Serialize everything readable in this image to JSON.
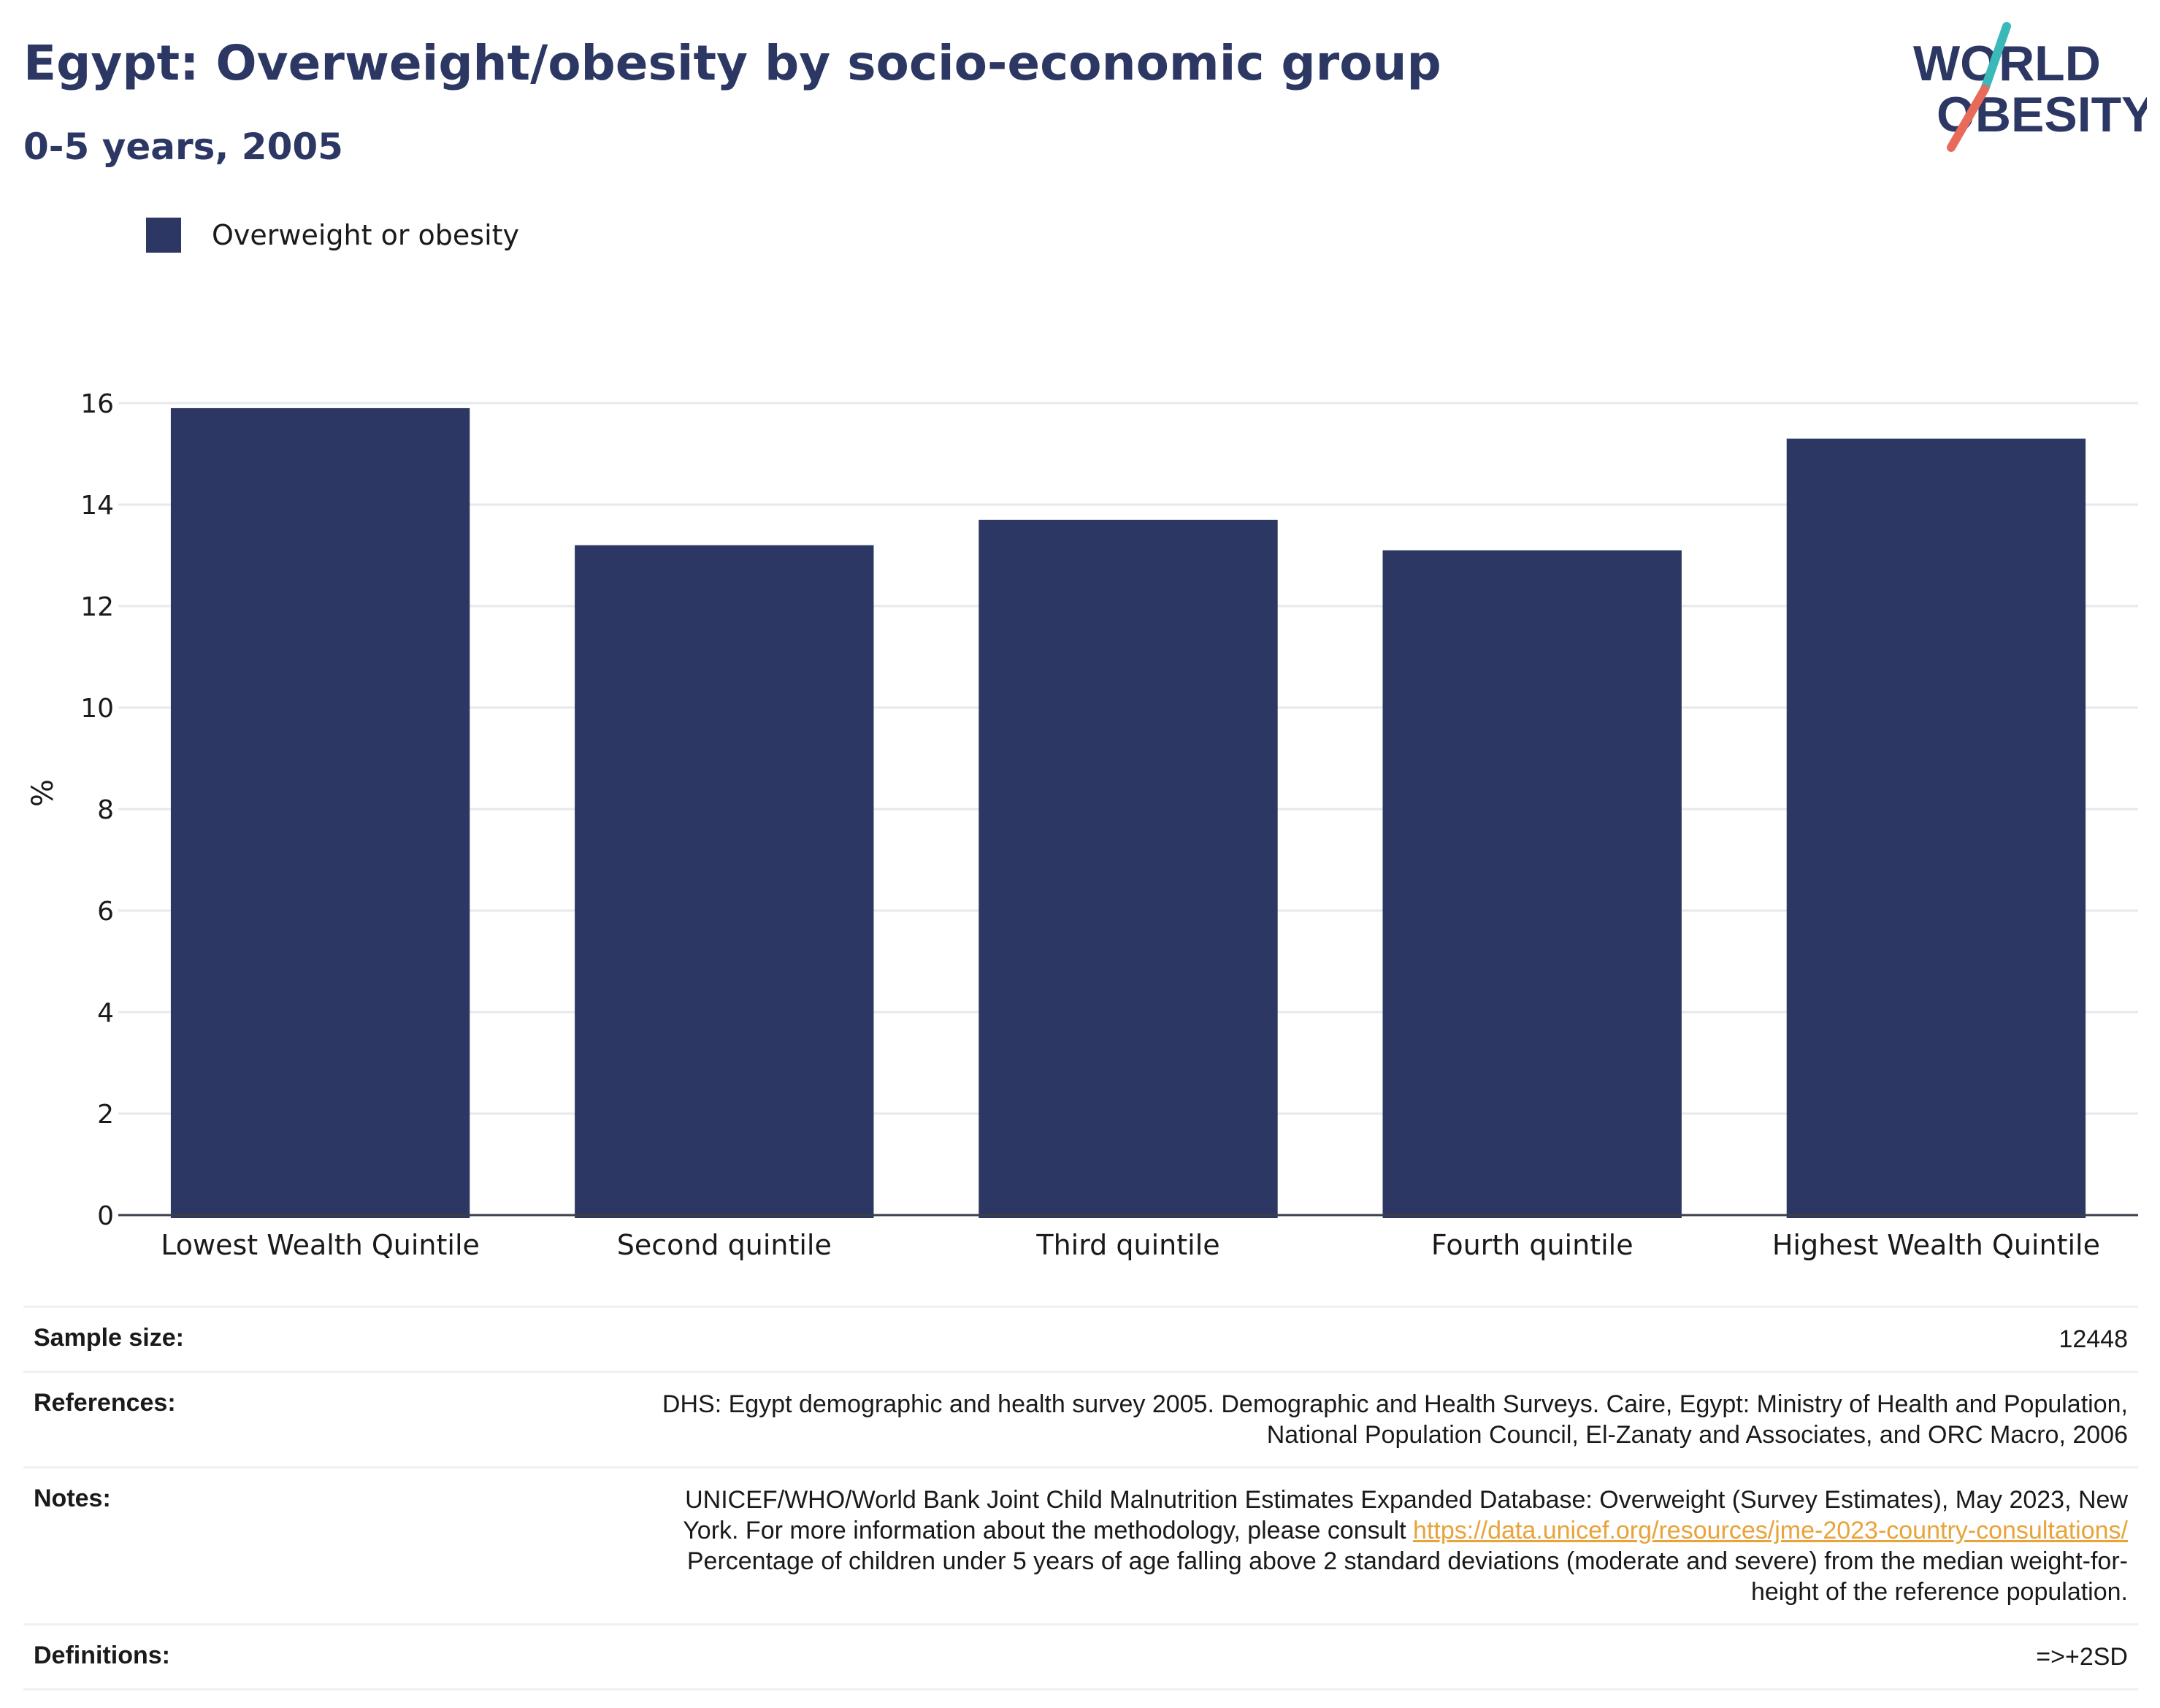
{
  "title": "Egypt: Overweight/obesity by socio-economic group",
  "subtitle": "0-5 years, 2005",
  "logo": {
    "line1": "WORLD",
    "line2": "OBESITY"
  },
  "colors": {
    "bar": "#2c3863",
    "title": "#2c3863",
    "logo_teal": "#3bb8b8",
    "logo_coral": "#e86a5a",
    "link": "#e8a33b"
  },
  "chart_data": {
    "type": "bar",
    "categories": [
      "Lowest Wealth Quintile",
      "Second quintile",
      "Third quintile",
      "Fourth quintile",
      "Highest Wealth Quintile"
    ],
    "series": [
      {
        "name": "Overweight or obesity",
        "values": [
          15.9,
          13.2,
          13.7,
          13.1,
          15.3
        ]
      }
    ],
    "ylabel": "%",
    "ylim": [
      0,
      16
    ],
    "yticks": [
      0,
      2,
      4,
      6,
      8,
      10,
      12,
      14,
      16
    ],
    "grid": true,
    "legend_position": "top-left"
  },
  "info": {
    "sample_size_label": "Sample size:",
    "sample_size_value": "12448",
    "references_label": "References:",
    "references_line1": "DHS: Egypt demographic and health survey 2005. Demographic and Health Surveys. Caire, Egypt: Ministry of Health and Population,",
    "references_line2": "National Population Council, El-Zanaty and Associates, and ORC Macro, 2006",
    "notes_label": "Notes:",
    "notes_line1": "UNICEF/WHO/World Bank Joint Child Malnutrition Estimates Expanded Database: Overweight (Survey Estimates), May 2023, New",
    "notes_line2_prefix": "York. For more information about the methodology, please consult",
    "notes_link": "https://data.unicef.org/resources/jme-2023-country-consultations/",
    "notes_line3": "Percentage of children under 5 years of age falling above 2 standard deviations (moderate and severe) from the median weight-for-",
    "notes_line4": "height of the reference population.",
    "definitions_label": "Definitions:",
    "definitions_value": "=>+2SD"
  }
}
